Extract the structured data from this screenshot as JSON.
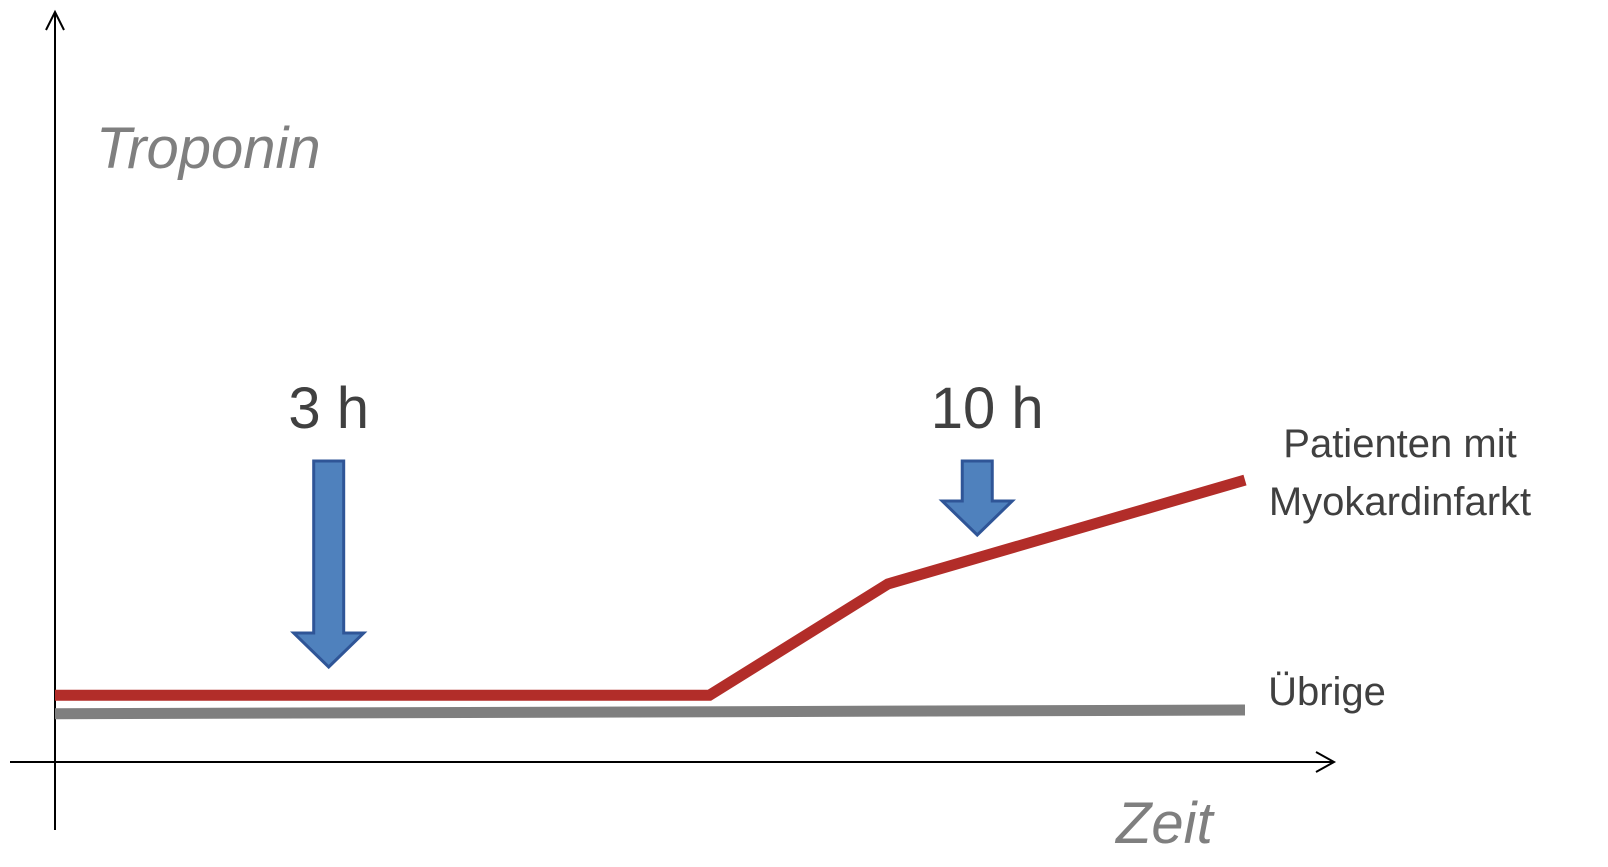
{
  "chart_data": {
    "type": "line",
    "title": "",
    "ylabel": "Troponin",
    "xlabel": "Zeit",
    "grid": false,
    "ticks": false,
    "series": [
      {
        "name": "Patienten mit Myokardinfarkt",
        "label_lines": [
          "Patienten mit",
          "Myokardinfarkt"
        ],
        "color": "#B22D29",
        "x": [
          0,
          0.55,
          0.7,
          1.0
        ],
        "y": [
          0.09,
          0.09,
          0.24,
          0.38
        ]
      },
      {
        "name": "Übrige",
        "label_lines": [
          "Übrige"
        ],
        "color": "#7F7F7F",
        "x": [
          0,
          1.0
        ],
        "y": [
          0.065,
          0.07
        ]
      }
    ],
    "annotations": [
      {
        "label": "3 h",
        "x": 0.23,
        "arrow": "down",
        "color": "#4F81BD",
        "arrow_size": "long"
      },
      {
        "label": "10 h",
        "x": 0.775,
        "arrow": "down",
        "color": "#4F81BD",
        "arrow_size": "short"
      }
    ]
  }
}
